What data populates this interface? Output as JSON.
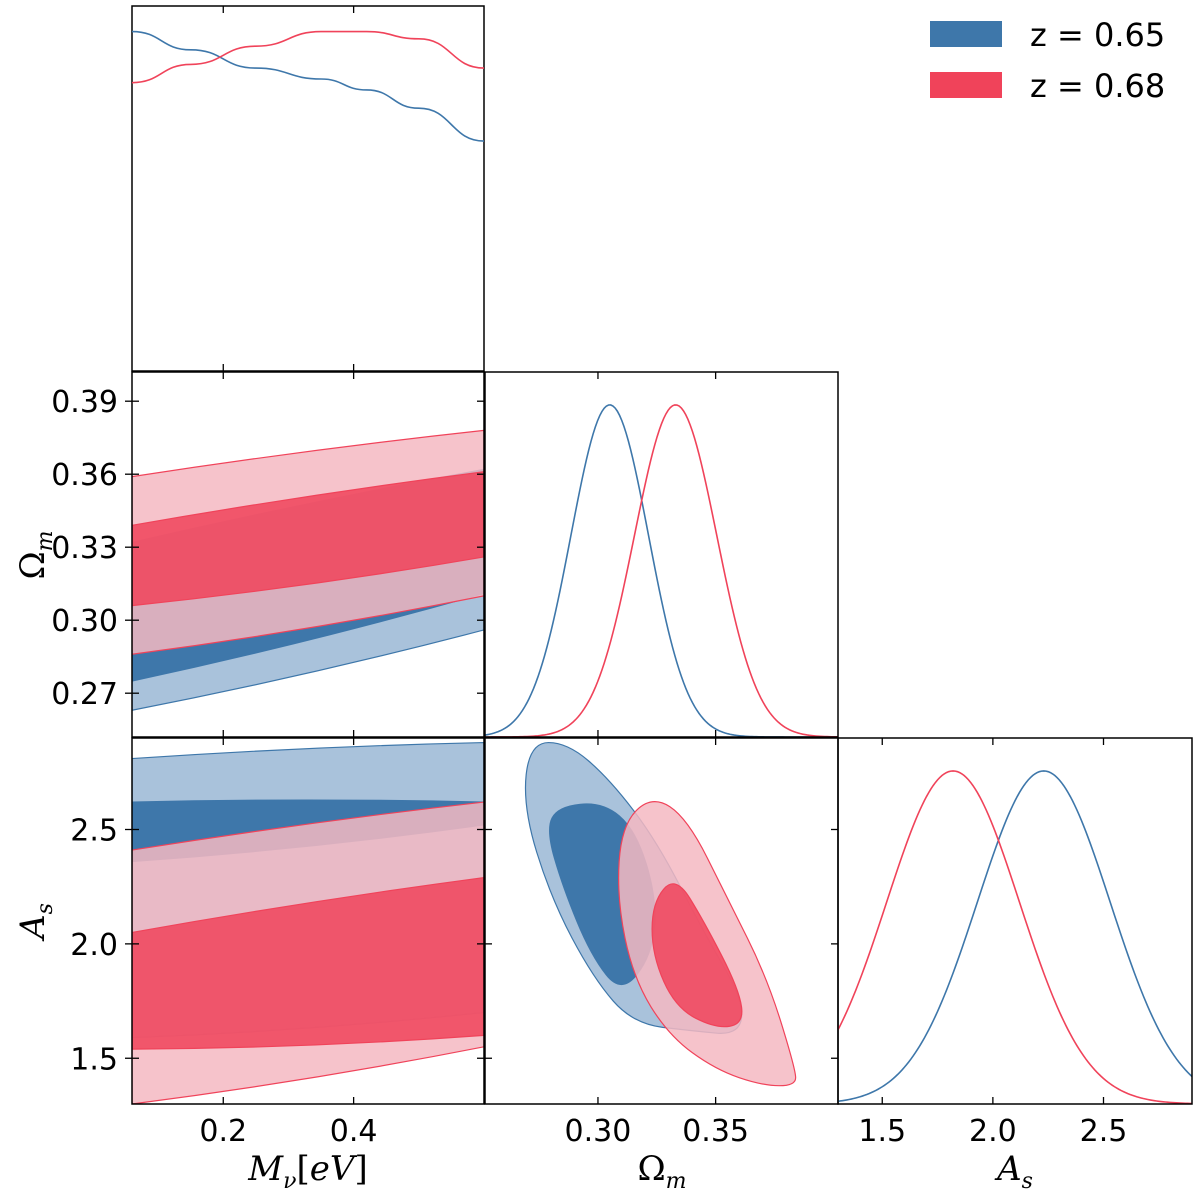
{
  "chart_data": {
    "type": "corner",
    "parameters": [
      {
        "key": "mnu",
        "label": "Mν[eV]",
        "range": [
          0.06,
          0.6
        ],
        "ticks": [
          0.2,
          0.4
        ],
        "tick_labels": [
          "0.2",
          "0.4"
        ]
      },
      {
        "key": "om",
        "label": "Ωm",
        "range": [
          0.252,
          0.402
        ],
        "ticks": [
          0.3,
          0.35
        ],
        "tick_labels": [
          "0.30",
          "0.35"
        ],
        "y_ticks": [
          0.27,
          0.3,
          0.33,
          0.36,
          0.39
        ],
        "y_tick_labels": [
          "0.27",
          "0.30",
          "0.33",
          "0.36",
          "0.39"
        ]
      },
      {
        "key": "As",
        "label": "As",
        "range": [
          1.3,
          2.9
        ],
        "ticks": [
          1.5,
          2.0,
          2.5
        ],
        "tick_labels": [
          "1.5",
          "2.0",
          "2.5"
        ],
        "y_ticks": [
          1.5,
          2.0,
          2.5
        ],
        "y_tick_labels": [
          "1.5",
          "2.0",
          "2.5"
        ]
      }
    ],
    "series": [
      {
        "name": "z = 0.65",
        "color": "#3e77aa",
        "light_color": "#a9c2db",
        "marginals": {
          "mnu": {
            "x": [
              0.06,
              0.15,
              0.25,
              0.35,
              0.42,
              0.5,
              0.6
            ],
            "y": [
              0.93,
              0.88,
              0.83,
              0.8,
              0.77,
              0.72,
              0.63
            ]
          },
          "om": {
            "mean": 0.305,
            "sigma": 0.0165
          },
          "As": {
            "mean": 2.23,
            "sigma": 0.3
          }
        },
        "contours_2d": {
          "mnu_om": {
            "inner": {
              "x": [
                0.06,
                0.6
              ],
              "lower": [
                0.275,
                0.311
              ],
              "upper": [
                0.332,
                0.362
              ]
            },
            "outer": {
              "x": [
                0.06,
                0.6
              ],
              "lower": [
                0.263,
                0.296
              ],
              "upper": [
                0.305,
                0.332
              ]
            }
          },
          "mnu_As": {
            "inner": {
              "x": [
                0.06,
                0.6
              ],
              "lower": [
                2.36,
                2.52
              ],
              "upper": [
                2.62,
                2.62
              ]
            },
            "outer": {
              "x": [
                0.06,
                0.6
              ],
              "lower": [
                1.59,
                1.7
              ],
              "upper": [
                2.81,
                2.88
              ]
            }
          },
          "om_As": {
            "outer": [
              [
                0.271,
                2.88
              ],
              [
                0.287,
                2.88
              ],
              [
                0.305,
                2.72
              ],
              [
                0.325,
                2.45
              ],
              [
                0.345,
                2.05
              ],
              [
                0.362,
                1.75
              ],
              [
                0.36,
                1.6
              ],
              [
                0.34,
                1.62
              ],
              [
                0.315,
                1.65
              ],
              [
                0.298,
                1.85
              ],
              [
                0.28,
                2.2
              ],
              [
                0.268,
                2.6
              ]
            ],
            "inner": [
              [
                0.283,
                2.6
              ],
              [
                0.302,
                2.62
              ],
              [
                0.316,
                2.5
              ],
              [
                0.325,
                2.2
              ],
              [
                0.323,
                1.95
              ],
              [
                0.31,
                1.78
              ],
              [
                0.297,
                1.95
              ],
              [
                0.285,
                2.25
              ],
              [
                0.278,
                2.5
              ]
            ]
          }
        }
      },
      {
        "name": "z = 0.68",
        "color": "#f0435a",
        "light_color": "#f5b8c2",
        "marginals": {
          "mnu": {
            "x": [
              0.06,
              0.15,
              0.25,
              0.35,
              0.42,
              0.5,
              0.6
            ],
            "y": [
              0.79,
              0.84,
              0.89,
              0.93,
              0.93,
              0.91,
              0.83
            ]
          },
          "om": {
            "mean": 0.333,
            "sigma": 0.0175
          },
          "As": {
            "mean": 1.82,
            "sigma": 0.3
          }
        },
        "contours_2d": {
          "mnu_om": {
            "inner": {
              "x": [
                0.06,
                0.6
              ],
              "lower": [
                0.306,
                0.326
              ],
              "upper": [
                0.339,
                0.361
              ]
            },
            "outer": {
              "x": [
                0.06,
                0.6
              ],
              "lower": [
                0.286,
                0.31
              ],
              "upper": [
                0.359,
                0.378
              ]
            }
          },
          "mnu_As": {
            "inner": {
              "x": [
                0.06,
                0.6
              ],
              "lower": [
                1.54,
                1.6
              ],
              "upper": [
                2.05,
                2.29
              ]
            },
            "outer": {
              "x": [
                0.06,
                0.6
              ],
              "lower": [
                1.3,
                1.55
              ],
              "upper": [
                2.41,
                2.62
              ]
            }
          },
          "om_As": {
            "outer": [
              [
                0.31,
                2.52
              ],
              [
                0.323,
                2.65
              ],
              [
                0.338,
                2.55
              ],
              [
                0.355,
                2.2
              ],
              [
                0.372,
                1.85
              ],
              [
                0.384,
                1.45
              ],
              [
                0.384,
                1.38
              ],
              [
                0.37,
                1.38
              ],
              [
                0.35,
                1.45
              ],
              [
                0.33,
                1.6
              ],
              [
                0.315,
                1.85
              ],
              [
                0.308,
                2.2
              ]
            ],
            "inner": [
              [
                0.323,
                2.18
              ],
              [
                0.333,
                2.3
              ],
              [
                0.345,
                2.1
              ],
              [
                0.36,
                1.8
              ],
              [
                0.362,
                1.65
              ],
              [
                0.35,
                1.63
              ],
              [
                0.333,
                1.72
              ],
              [
                0.323,
                1.95
              ]
            ]
          }
        }
      }
    ],
    "legend": {
      "placement": "top-right",
      "entries": [
        "z = 0.65",
        "z = 0.68"
      ]
    }
  }
}
